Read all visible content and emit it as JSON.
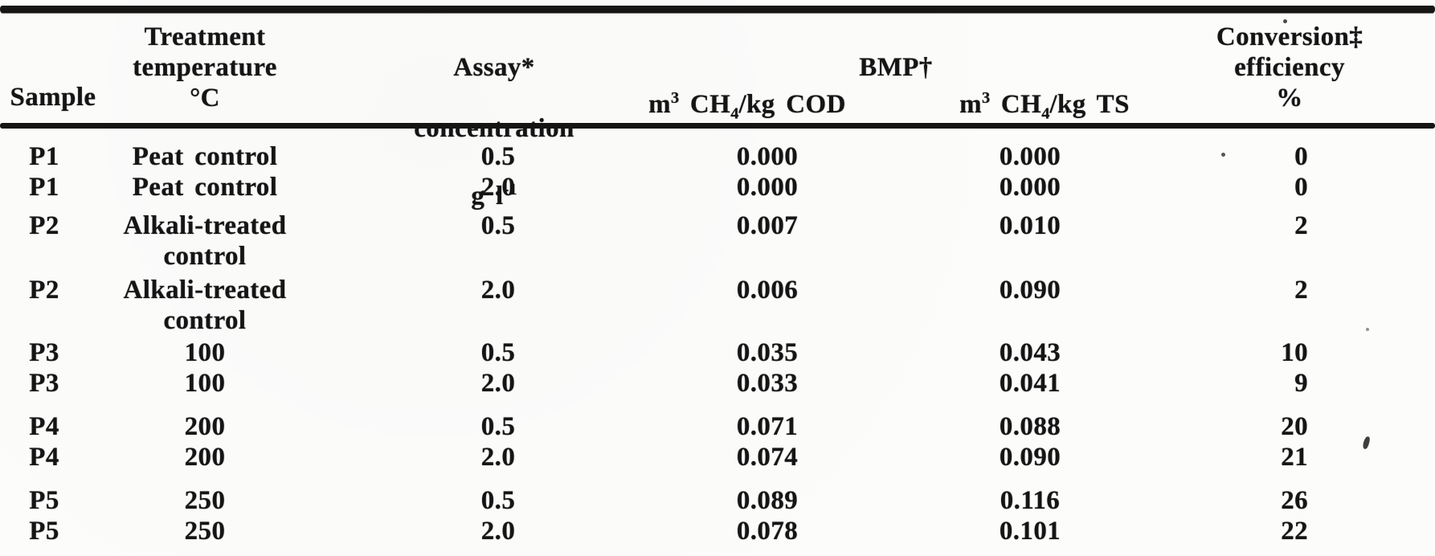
{
  "table": {
    "header": {
      "sample": "Sample",
      "treatment": "Treatment\ntemperature\n°C",
      "assay_line1": "Assay*",
      "assay_line2": "concentration",
      "assay_unit_base": "g l",
      "assay_unit_sup": "-1",
      "bmp_group": "BMP†",
      "unit_m": "m",
      "unit_m_sup": "3",
      "unit_ch": " CH",
      "unit_ch_sub": "4",
      "unit_cod_tail": "/kg COD",
      "unit_ts_tail": "/kg TS",
      "conversion": "Conversion‡\nefficiency\n%"
    },
    "rows": [
      {
        "sample": "P1",
        "treatment": "Peat control",
        "concentration": "0.5",
        "bmp_cod": "0.000",
        "bmp_ts": "0.000",
        "conversion": "0"
      },
      {
        "sample": "P1",
        "treatment": "Peat control",
        "concentration": "2.0",
        "bmp_cod": "0.000",
        "bmp_ts": "0.000",
        "conversion": "0"
      },
      {
        "sample": "P2",
        "treatment": "Alkali-treated\ncontrol",
        "concentration": "0.5",
        "bmp_cod": "0.007",
        "bmp_ts": "0.010",
        "conversion": "2"
      },
      {
        "sample": "P2",
        "treatment": "Alkali-treated\ncontrol",
        "concentration": "2.0",
        "bmp_cod": "0.006",
        "bmp_ts": "0.090",
        "conversion": "2"
      },
      {
        "sample": "P3",
        "treatment": "100",
        "concentration": "0.5",
        "bmp_cod": "0.035",
        "bmp_ts": "0.043",
        "conversion": "10"
      },
      {
        "sample": "P3",
        "treatment": "100",
        "concentration": "2.0",
        "bmp_cod": "0.033",
        "bmp_ts": "0.041",
        "conversion": "9"
      },
      {
        "sample": "P4",
        "treatment": "200",
        "concentration": "0.5",
        "bmp_cod": "0.071",
        "bmp_ts": "0.088",
        "conversion": "20"
      },
      {
        "sample": "P4",
        "treatment": "200",
        "concentration": "2.0",
        "bmp_cod": "0.074",
        "bmp_ts": "0.090",
        "conversion": "21"
      },
      {
        "sample": "P5",
        "treatment": "250",
        "concentration": "0.5",
        "bmp_cod": "0.089",
        "bmp_ts": "0.116",
        "conversion": "26"
      },
      {
        "sample": "P5",
        "treatment": "250",
        "concentration": "2.0",
        "bmp_cod": "0.078",
        "bmp_ts": "0.101",
        "conversion": "22"
      }
    ],
    "ink_color": "#171514",
    "paper_color": "#fcfcfb"
  }
}
